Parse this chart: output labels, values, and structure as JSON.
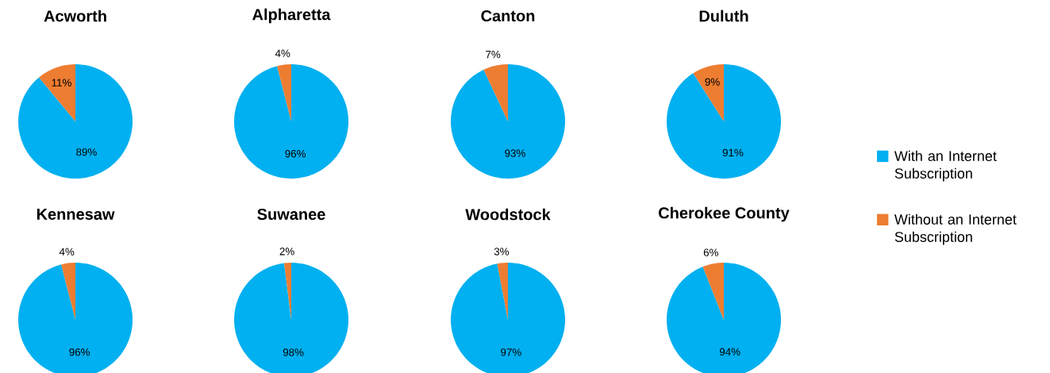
{
  "chart_data": [
    {
      "type": "pie",
      "title": "Acworth",
      "categories": [
        null,
        null
      ],
      "values": [
        89,
        11
      ],
      "colors": [
        "#00b0f0",
        "#ed7d31"
      ],
      "value_labels": [
        "89%",
        "11%"
      ]
    },
    {
      "type": "pie",
      "title": "Alpharetta",
      "categories": [
        null,
        null
      ],
      "values": [
        96,
        4
      ],
      "colors": [
        "#00b0f0",
        "#ed7d31"
      ],
      "value_labels": [
        "96%",
        "4%"
      ]
    },
    {
      "type": "pie",
      "title": "Canton",
      "categories": [
        null,
        null
      ],
      "values": [
        93,
        7
      ],
      "colors": [
        "#00b0f0",
        "#ed7d31"
      ],
      "value_labels": [
        "93%",
        "7%"
      ]
    },
    {
      "type": "pie",
      "title": "Duluth",
      "categories": [
        "With an Internet Subscription",
        "Without an Internet Subscription"
      ],
      "values": [
        91,
        9
      ],
      "colors": [
        "#00b0f0",
        "#ed7d31"
      ],
      "value_labels": [
        "91%",
        "9%"
      ],
      "legend": "right"
    },
    {
      "type": "pie",
      "title": "Kennesaw",
      "categories": [
        null,
        null
      ],
      "values": [
        96,
        4
      ],
      "colors": [
        "#00b0f0",
        "#ed7d31"
      ],
      "value_labels": [
        "96%",
        "4%"
      ]
    },
    {
      "type": "pie",
      "title": "Suwanee",
      "categories": [
        null,
        null
      ],
      "values": [
        98,
        2
      ],
      "colors": [
        "#00b0f0",
        "#ed7d31"
      ],
      "value_labels": [
        "98%",
        "2%"
      ]
    },
    {
      "type": "pie",
      "title": "Woodstock",
      "categories": [
        null,
        null
      ],
      "values": [
        97,
        3
      ],
      "colors": [
        "#00b0f0",
        "#ed7d31"
      ],
      "value_labels": [
        "97%",
        "3%"
      ]
    },
    {
      "type": "pie",
      "title": "Cherokee County",
      "categories": [
        null,
        null
      ],
      "values": [
        94,
        6
      ],
      "colors": [
        "#00b0f0",
        "#ed7d31"
      ],
      "value_labels": [
        "94%",
        "6%"
      ]
    }
  ]
}
